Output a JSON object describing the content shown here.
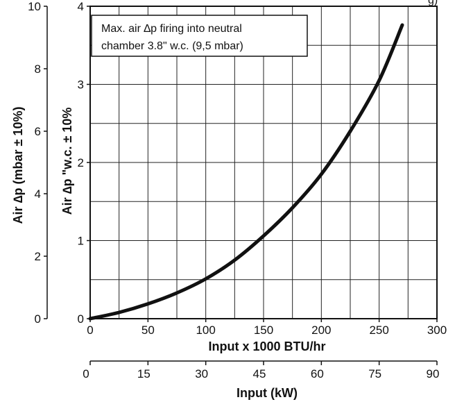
{
  "chart_data": {
    "type": "line",
    "title": "",
    "annotation": [
      "Max. air ∆p firing into neutral",
      "chamber 3.8\" w.c. (9,5 mbar)"
    ],
    "top_right_fragment": "g)",
    "x_axis": {
      "label": "Input x 1000 BTU/hr",
      "range": [
        0,
        300
      ],
      "ticks": [
        0,
        50,
        100,
        150,
        200,
        250,
        300
      ],
      "minor_ticks": [
        25,
        75,
        125,
        175,
        225,
        275
      ]
    },
    "x2_axis": {
      "label": "Input (kW)",
      "range": [
        0,
        90
      ],
      "ticks": [
        0,
        15,
        30,
        45,
        60,
        75,
        90
      ]
    },
    "y_axis": {
      "label": "Air ∆p \"w.c. ± 10%",
      "range": [
        0,
        4
      ],
      "ticks": [
        0,
        1,
        2,
        3,
        4
      ],
      "minor_ticks": [
        0.5,
        1.5,
        2.5,
        3.5
      ]
    },
    "y2_axis": {
      "label": "Air ∆p  (mbar ± 10%)",
      "range": [
        0,
        10
      ],
      "ticks": [
        0,
        2,
        4,
        6,
        8,
        10
      ]
    },
    "grid": true,
    "series": [
      {
        "color": "#111111",
        "x": [
          0,
          25,
          50,
          75,
          100,
          125,
          150,
          175,
          200,
          225,
          250,
          270
        ],
        "y": [
          0,
          0.08,
          0.19,
          0.33,
          0.51,
          0.75,
          1.06,
          1.42,
          1.85,
          2.4,
          3.05,
          3.76
        ]
      }
    ]
  }
}
